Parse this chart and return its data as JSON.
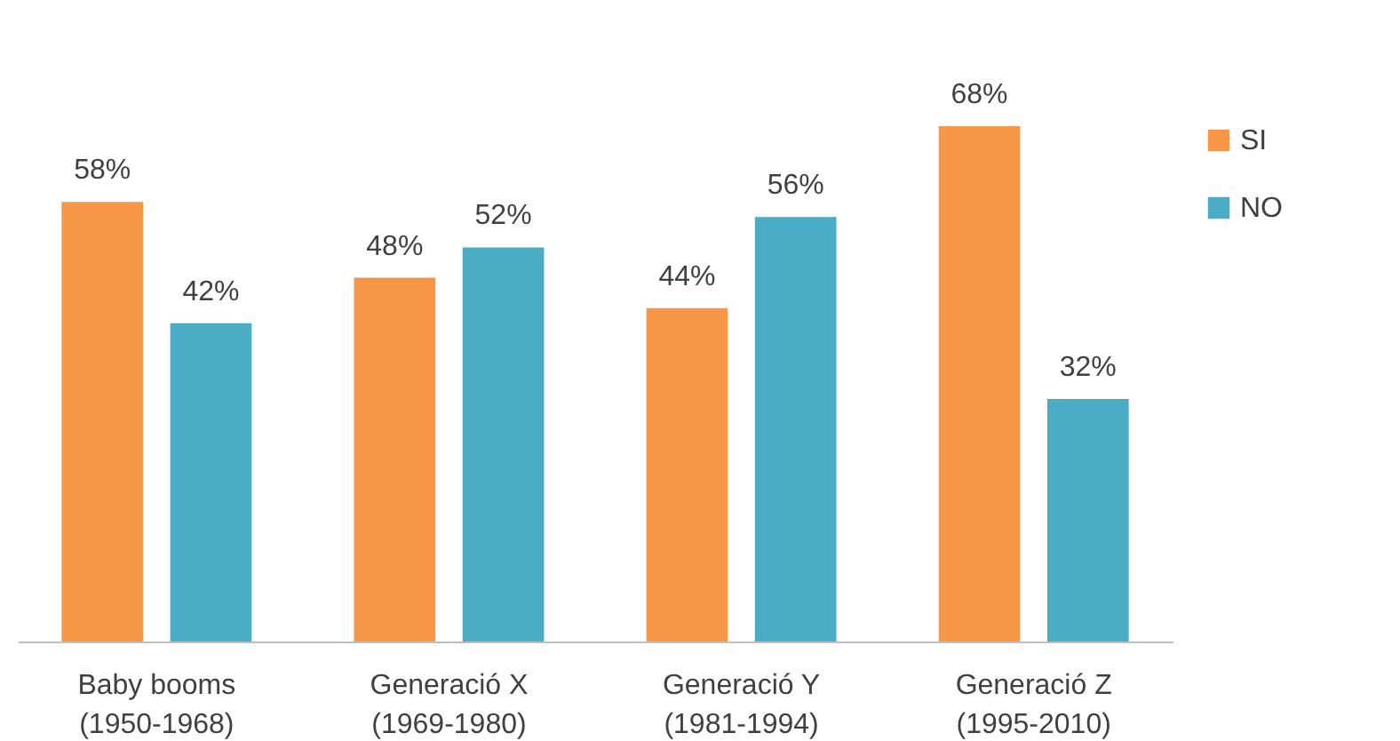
{
  "chart_data": {
    "type": "bar",
    "categories": [
      "Baby booms\n(1950-1968)",
      "Generació X\n(1969-1980)",
      "Generació Y\n(1981-1994)",
      "Generació Z\n(1995-2010)"
    ],
    "series": [
      {
        "name": "SI",
        "color": "#f79646",
        "values": [
          58,
          48,
          44,
          68
        ],
        "value_labels": [
          "58%",
          "48%",
          "44%",
          "68%"
        ]
      },
      {
        "name": "NO",
        "color": "#4bacc6",
        "values": [
          42,
          52,
          56,
          32
        ],
        "value_labels": [
          "42%",
          "52%",
          "56%",
          "32%"
        ]
      }
    ],
    "legend": "right",
    "grid": false,
    "tick_labels": "x"
  }
}
